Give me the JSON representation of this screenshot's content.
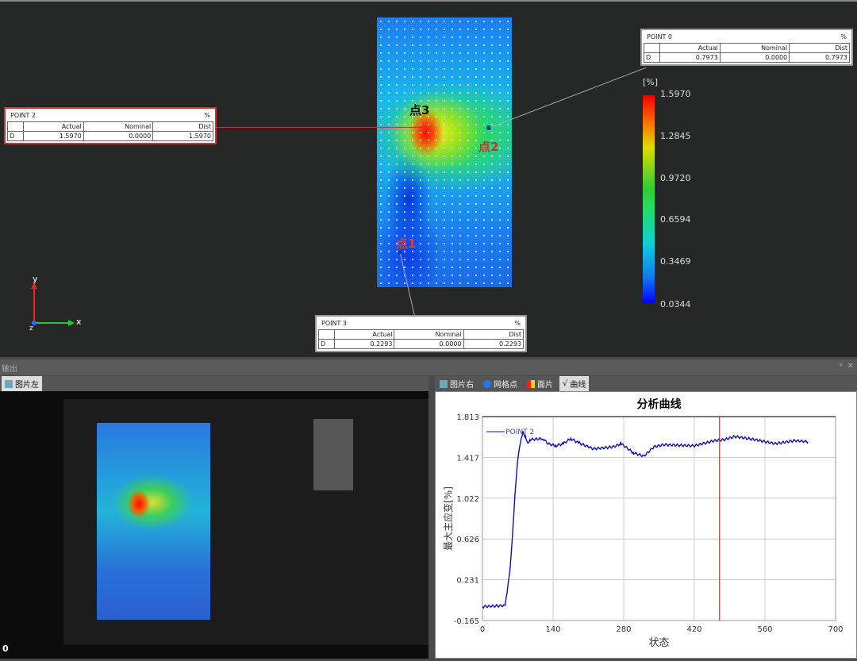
{
  "viewport": {
    "point_labels": [
      "点3",
      "点2",
      "点1"
    ],
    "callouts": [
      {
        "title": "POINT 0",
        "unit": "%",
        "headers": [
          "Actual",
          "Nominal",
          "Dist"
        ],
        "row_label": "D",
        "actual": "0.7973",
        "nominal": "0.0000",
        "dist": "0.7973"
      },
      {
        "title": "POINT 2",
        "unit": "%",
        "headers": [
          "Actual",
          "Nominal",
          "Dist"
        ],
        "row_label": "D",
        "actual": "1.5970",
        "nominal": "0.0000",
        "dist": "1.5970"
      },
      {
        "title": "POINT 3",
        "unit": "%",
        "headers": [
          "Actual",
          "Nominal",
          "Dist"
        ],
        "row_label": "D",
        "actual": "0.2293",
        "nominal": "0.0000",
        "dist": "0.2293"
      }
    ],
    "colorbar": {
      "unit": "[%]",
      "ticks": [
        "1.5970",
        "1.2845",
        "0.9720",
        "0.6594",
        "0.3469",
        "0.0344"
      ]
    },
    "axes": {
      "y": "y",
      "x": "x",
      "z": "z"
    }
  },
  "output_panel": {
    "title": "输出",
    "pin": "ᵠ",
    "close": "✕"
  },
  "left_panel": {
    "tab": "图片左",
    "frame": "0"
  },
  "right_panel": {
    "tabs": [
      "图片右",
      "网格点",
      "面片",
      "曲线"
    ]
  },
  "chart_data": {
    "type": "line",
    "title": "分析曲线",
    "xlabel": "状态",
    "ylabel": "最大主应变[%]",
    "xlim": [
      0,
      700
    ],
    "ylim": [
      -0.165,
      1.813
    ],
    "xticks": [
      "0",
      "140",
      "280",
      "420",
      "560",
      "700"
    ],
    "yticks": [
      "1.813",
      "1.417",
      "1.022",
      "0.626",
      "0.231",
      "-0.165"
    ],
    "grid": true,
    "legend": "POINT 2",
    "marker_x": 470,
    "series": [
      {
        "name": "POINT 2",
        "x": [
          0,
          45,
          50,
          55,
          60,
          65,
          70,
          75,
          80,
          85,
          90,
          95,
          120,
          130,
          145,
          160,
          175,
          190,
          220,
          260,
          275,
          300,
          320,
          340,
          360,
          420,
          460,
          480,
          500,
          540,
          580,
          620,
          645
        ],
        "y": [
          -0.03,
          -0.02,
          0.15,
          0.35,
          0.7,
          1.1,
          1.4,
          1.55,
          1.66,
          1.62,
          1.56,
          1.59,
          1.6,
          1.55,
          1.53,
          1.55,
          1.6,
          1.56,
          1.5,
          1.52,
          1.55,
          1.46,
          1.43,
          1.52,
          1.54,
          1.53,
          1.58,
          1.59,
          1.62,
          1.59,
          1.55,
          1.58,
          1.57
        ]
      }
    ]
  }
}
